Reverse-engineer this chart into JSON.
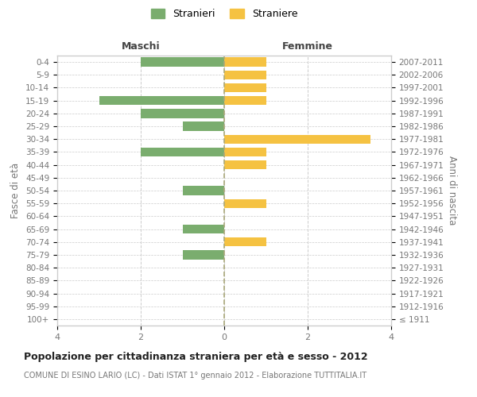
{
  "age_groups": [
    "100+",
    "95-99",
    "90-94",
    "85-89",
    "80-84",
    "75-79",
    "70-74",
    "65-69",
    "60-64",
    "55-59",
    "50-54",
    "45-49",
    "40-44",
    "35-39",
    "30-34",
    "25-29",
    "20-24",
    "15-19",
    "10-14",
    "5-9",
    "0-4"
  ],
  "birth_years": [
    "≤ 1911",
    "1912-1916",
    "1917-1921",
    "1922-1926",
    "1927-1931",
    "1932-1936",
    "1937-1941",
    "1942-1946",
    "1947-1951",
    "1952-1956",
    "1957-1961",
    "1962-1966",
    "1967-1971",
    "1972-1976",
    "1977-1981",
    "1982-1986",
    "1987-1991",
    "1992-1996",
    "1997-2001",
    "2002-2006",
    "2007-2011"
  ],
  "males": [
    0,
    0,
    0,
    0,
    0,
    1,
    0,
    1,
    0,
    0,
    1,
    0,
    0,
    2,
    0,
    1,
    2,
    3,
    0,
    0,
    2
  ],
  "females": [
    0,
    0,
    0,
    0,
    0,
    0,
    1,
    0,
    0,
    1,
    0,
    0,
    1,
    1,
    3.5,
    0,
    0,
    1,
    1,
    1,
    1
  ],
  "male_color": "#7aad6e",
  "female_color": "#f5c242",
  "xlim": [
    -4,
    4
  ],
  "xticks": [
    -4,
    -2,
    0,
    2,
    4
  ],
  "xticklabels": [
    "4",
    "2",
    "0",
    "2",
    "4"
  ],
  "title": "Popolazione per cittadinanza straniera per età e sesso - 2012",
  "subtitle": "COMUNE DI ESINO LARIO (LC) - Dati ISTAT 1° gennaio 2012 - Elaborazione TUTTITALIA.IT",
  "ylabel_left": "Fasce di età",
  "ylabel_right": "Anni di nascita",
  "label_maschi": "Maschi",
  "label_femmine": "Femmine",
  "legend_stranieri": "Stranieri",
  "legend_straniere": "Straniere",
  "bar_height": 0.7,
  "grid_color": "#cccccc",
  "background_color": "#ffffff",
  "spine_color": "#cccccc",
  "text_color": "#777777"
}
